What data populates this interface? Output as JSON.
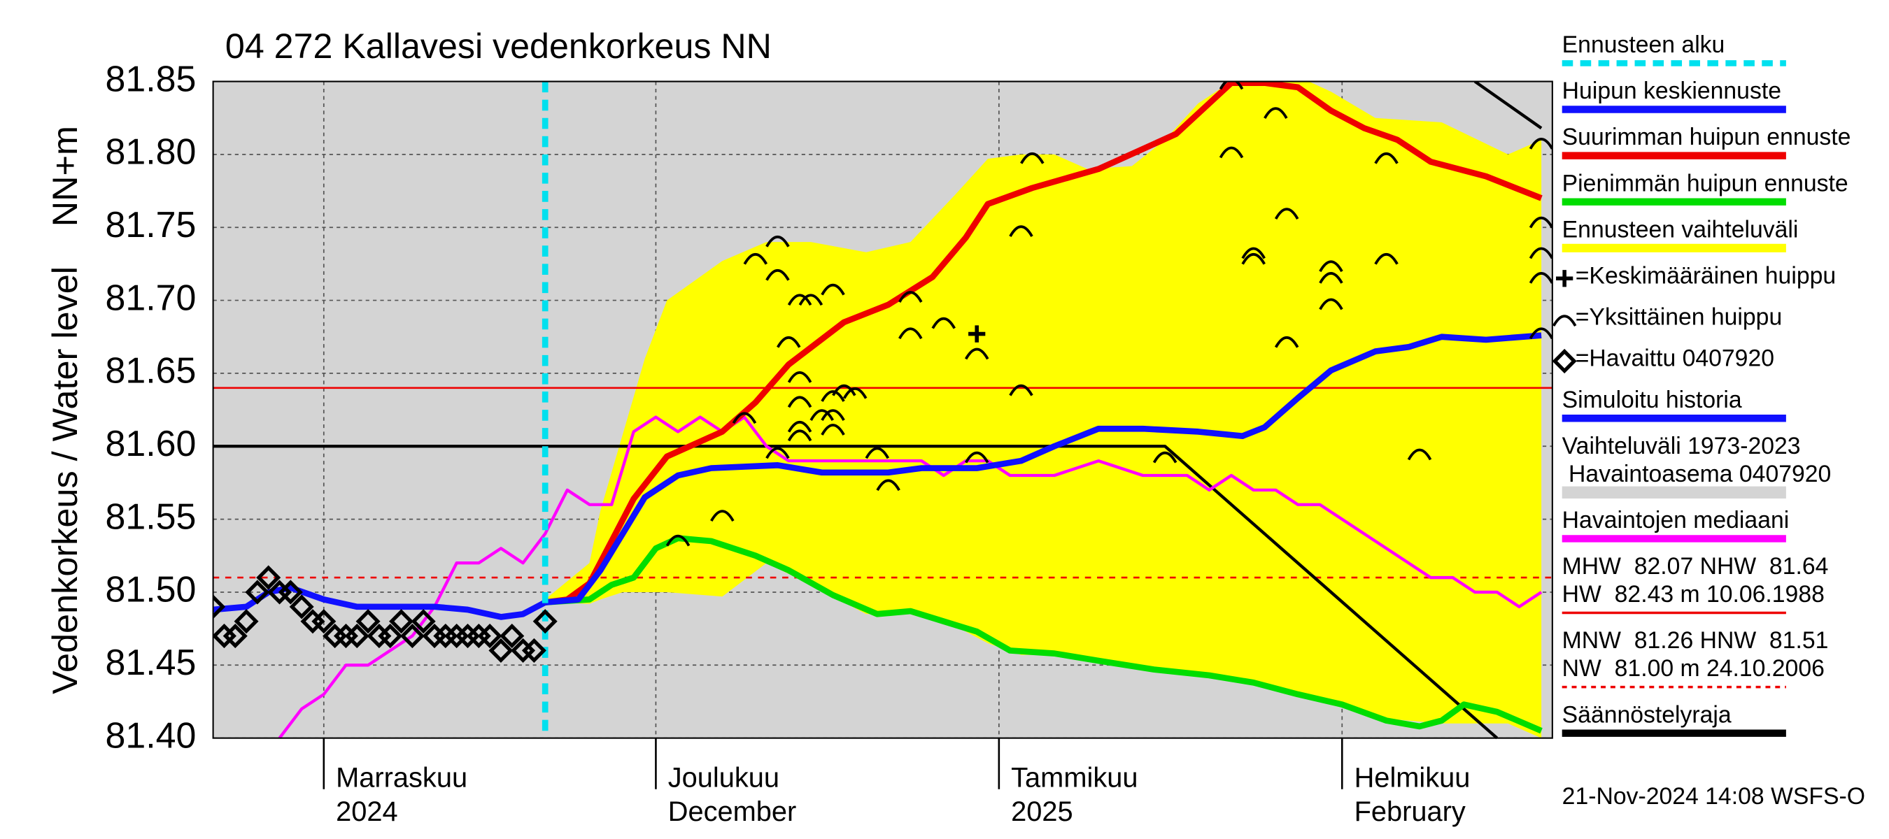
{
  "chart_data": {
    "type": "line",
    "title": "04 272 Kallavesi vedenkorkeus NN",
    "ylabel": "Vedenkorkeus / Water level",
    "yunit": "NN+m",
    "footer": "21-Nov-2024 14:08 WSFS-O",
    "xlim": [
      "2024-10-22",
      "2025-02-20"
    ],
    "xticks": [
      {
        "value": "2024-11-01",
        "label": "Marraskuu",
        "label_2": "2024"
      },
      {
        "value": "2024-12-01",
        "label": "Joulukuu",
        "label_2": "December"
      },
      {
        "value": "2025-01-01",
        "label": "Tammikuu",
        "label_2": "2025"
      },
      {
        "value": "2025-02-01",
        "label": "Helmikuu",
        "label_2": "February"
      }
    ],
    "ylim": [
      81.4,
      81.85
    ],
    "yticks": [
      {
        "value": 81.4,
        "label": "81.40"
      },
      81.45,
      {
        "value": 81.5,
        "label": "81.50"
      },
      81.55,
      {
        "value": 81.6,
        "label": "81.60"
      },
      81.65,
      {
        "value": 81.7,
        "label": "81.70"
      },
      81.75,
      {
        "value": 81.8,
        "label": "81.80"
      },
      81.85
    ],
    "grid": true,
    "series": [
      {
        "kind": "vline",
        "name": "Ennusteen alku",
        "color": "#00e0ee",
        "x": "2024-11-21"
      },
      {
        "kind": "line",
        "name": "Huipun keskiennuste",
        "color": "#1010ff",
        "width": 5,
        "x": [
          "2024-11-21",
          "2024-11-24",
          "2024-11-26",
          "2024-11-28",
          "2024-11-30",
          "2024-12-03",
          "2024-12-06",
          "2024-12-12",
          "2024-12-16",
          "2024-12-22",
          "2024-12-25",
          "2024-12-30",
          "2025-01-03",
          "2025-01-06",
          "2025-01-10",
          "2025-01-14",
          "2025-01-19",
          "2025-01-23",
          "2025-01-25",
          "2025-01-28",
          "2025-01-31",
          "2025-02-04",
          "2025-02-07",
          "2025-02-10",
          "2025-02-14",
          "2025-02-19"
        ],
        "values": [
          81.493,
          81.495,
          81.515,
          81.54,
          81.565,
          81.58,
          81.585,
          81.587,
          81.582,
          81.582,
          81.585,
          81.585,
          81.59,
          81.6,
          81.612,
          81.612,
          81.61,
          81.607,
          81.613,
          81.633,
          81.652,
          81.665,
          81.668,
          81.675,
          81.673,
          81.676
        ]
      },
      {
        "kind": "line",
        "name": "Suurimman huipun ennuste",
        "color": "#ee0000",
        "width": 5,
        "x": [
          "2024-11-21",
          "2024-11-23",
          "2024-11-25",
          "2024-11-27",
          "2024-11-29",
          "2024-12-02",
          "2024-12-07",
          "2024-12-10",
          "2024-12-13",
          "2024-12-18",
          "2024-12-22",
          "2024-12-26",
          "2024-12-29",
          "2024-12-31",
          "2025-01-04",
          "2025-01-10",
          "2025-01-17",
          "2025-01-22",
          "2025-01-25",
          "2025-01-28",
          "2025-01-31",
          "2025-02-03",
          "2025-02-06",
          "2025-02-09",
          "2025-02-14",
          "2025-02-19"
        ],
        "values": [
          81.493,
          81.495,
          81.506,
          81.535,
          81.564,
          81.593,
          81.61,
          81.63,
          81.656,
          81.685,
          81.697,
          81.716,
          81.743,
          81.766,
          81.777,
          81.79,
          81.814,
          81.849,
          81.849,
          81.846,
          81.83,
          81.818,
          81.81,
          81.795,
          81.785,
          81.77
        ]
      },
      {
        "kind": "line",
        "name": "Pienimmän huipun ennuste",
        "color": "#00dd00",
        "width": 5,
        "x": [
          "2024-11-21",
          "2024-11-25",
          "2024-11-27",
          "2024-11-29",
          "2024-12-01",
          "2024-12-03",
          "2024-12-06",
          "2024-12-10",
          "2024-12-13",
          "2024-12-17",
          "2024-12-21",
          "2024-12-24",
          "2024-12-27",
          "2024-12-30",
          "2025-01-02",
          "2025-01-06",
          "2025-01-10",
          "2025-01-15",
          "2025-01-20",
          "2025-01-24",
          "2025-01-28",
          "2025-02-01",
          "2025-02-05",
          "2025-02-08",
          "2025-02-10",
          "2025-02-12",
          "2025-02-15",
          "2025-02-19"
        ],
        "values": [
          81.493,
          81.495,
          81.505,
          81.51,
          81.53,
          81.537,
          81.535,
          81.525,
          81.515,
          81.498,
          81.485,
          81.487,
          81.48,
          81.473,
          81.46,
          81.458,
          81.453,
          81.447,
          81.443,
          81.438,
          81.43,
          81.423,
          81.412,
          81.408,
          81.412,
          81.423,
          81.418,
          81.405
        ]
      },
      {
        "kind": "band",
        "name": "Ennusteen vaihteluväli",
        "color": "#ffff00",
        "x": [
          "2024-11-21",
          "2024-11-25",
          "2024-11-26",
          "2024-11-28",
          "2024-11-30",
          "2024-12-02",
          "2024-12-07",
          "2024-12-11",
          "2024-12-15",
          "2024-12-20",
          "2024-12-24",
          "2024-12-28",
          "2024-12-31",
          "2025-01-03",
          "2025-01-06",
          "2025-01-09",
          "2025-01-13",
          "2025-01-16",
          "2025-01-19",
          "2025-01-22",
          "2025-01-29",
          "2025-01-31",
          "2025-02-04",
          "2025-02-10",
          "2025-02-16",
          "2025-02-19"
        ],
        "values": [
          81.495,
          81.52,
          81.556,
          81.608,
          81.66,
          81.7,
          81.727,
          81.74,
          81.74,
          81.733,
          81.74,
          81.772,
          81.797,
          81.8,
          81.8,
          81.79,
          81.792,
          81.81,
          81.835,
          81.85,
          81.85,
          81.843,
          81.825,
          81.822,
          81.8,
          81.81
        ],
        "low": [
          81.493,
          81.492,
          81.495,
          81.5,
          81.5,
          81.5,
          81.497,
          81.52,
          81.505,
          81.485,
          81.485,
          81.477,
          81.465,
          81.457,
          81.457,
          81.454,
          81.449,
          81.446,
          81.443,
          81.44,
          81.428,
          81.425,
          81.414,
          81.41,
          81.41,
          81.4
        ]
      },
      {
        "kind": "marker",
        "marker": "plus",
        "name": "=Keskimääräinen huippu",
        "color": "#000000",
        "x": [
          "2024-12-30"
        ],
        "values": [
          81.677
        ]
      },
      {
        "kind": "marker",
        "marker": "arc",
        "name": "=Yksittäinen huippu",
        "color": "#000000",
        "x": [
          "2024-12-10",
          "2024-12-12",
          "2024-12-12",
          "2024-12-13",
          "2024-12-14",
          "2024-12-15",
          "2024-12-17",
          "2024-12-14",
          "2024-12-14",
          "2024-12-14",
          "2024-12-14",
          "2024-12-17",
          "2024-12-18",
          "2024-12-19",
          "2024-12-16",
          "2024-12-17",
          "2024-12-17",
          "2024-12-09",
          "2024-12-12",
          "2024-12-07",
          "2024-12-03",
          "2024-12-21",
          "2024-12-22",
          "2024-12-24",
          "2024-12-24",
          "2024-12-27",
          "2024-12-30",
          "2024-12-30",
          "2025-01-03",
          "2025-01-03",
          "2025-01-04",
          "2025-01-16",
          "2025-01-22",
          "2025-01-22",
          "2025-01-24",
          "2025-01-24",
          "2025-01-26",
          "2025-01-27",
          "2025-01-27",
          "2025-01-31",
          "2025-01-31",
          "2025-01-31",
          "2025-02-05",
          "2025-02-05",
          "2025-02-08",
          "2025-02-19",
          "2025-02-19",
          "2025-02-19",
          "2025-02-19",
          "2025-02-19"
        ],
        "values": [
          81.729,
          81.741,
          81.718,
          81.672,
          81.701,
          81.701,
          81.708,
          81.648,
          81.631,
          81.614,
          81.608,
          81.635,
          81.639,
          81.637,
          81.622,
          81.622,
          81.612,
          81.62,
          81.596,
          81.553,
          81.536,
          81.596,
          81.574,
          81.703,
          81.678,
          81.685,
          81.664,
          81.593,
          81.639,
          81.748,
          81.798,
          81.593,
          81.802,
          81.849,
          81.733,
          81.729,
          81.829,
          81.76,
          81.672,
          81.724,
          81.716,
          81.698,
          81.729,
          81.798,
          81.595,
          81.808,
          81.754,
          81.733,
          81.716,
          81.678
        ]
      },
      {
        "kind": "marker",
        "marker": "diamond",
        "name": "=Havaittu 0407920",
        "color": "#000000",
        "x": [
          "2024-10-22",
          "2024-10-23",
          "2024-10-24",
          "2024-10-25",
          "2024-10-26",
          "2024-10-27",
          "2024-10-28",
          "2024-10-29",
          "2024-10-30",
          "2024-10-31",
          "2024-11-01",
          "2024-11-02",
          "2024-11-03",
          "2024-11-04",
          "2024-11-05",
          "2024-11-06",
          "2024-11-07",
          "2024-11-08",
          "2024-11-09",
          "2024-11-10",
          "2024-11-11",
          "2024-11-12",
          "2024-11-13",
          "2024-11-14",
          "2024-11-15",
          "2024-11-16",
          "2024-11-17",
          "2024-11-18",
          "2024-11-19",
          "2024-11-20",
          "2024-11-21"
        ],
        "values": [
          81.49,
          81.47,
          81.47,
          81.48,
          81.5,
          81.51,
          81.5,
          81.5,
          81.49,
          81.48,
          81.48,
          81.47,
          81.47,
          81.47,
          81.48,
          81.47,
          81.47,
          81.48,
          81.47,
          81.48,
          81.47,
          81.47,
          81.47,
          81.47,
          81.47,
          81.47,
          81.46,
          81.47,
          81.46,
          81.46,
          81.48
        ]
      },
      {
        "kind": "line",
        "name": "Simuloitu historia",
        "color": "#1010ff",
        "width": 5,
        "x": [
          "2024-10-22",
          "2024-10-25",
          "2024-10-27",
          "2024-10-29",
          "2024-11-01",
          "2024-11-04",
          "2024-11-08",
          "2024-11-11",
          "2024-11-14",
          "2024-11-17",
          "2024-11-19",
          "2024-11-21"
        ],
        "values": [
          81.488,
          81.49,
          81.5,
          81.503,
          81.495,
          81.49,
          81.49,
          81.49,
          81.488,
          81.483,
          81.485,
          81.493
        ]
      },
      {
        "kind": "background",
        "name": [
          "Vaihteluväli 1973-2023",
          " Havaintoasema 0407920"
        ],
        "color": "#d4d4d4"
      },
      {
        "kind": "line",
        "name": "Havaintojen mediaani",
        "color": "#ff00ff",
        "width": 2.5,
        "x": [
          "2024-10-28",
          "2024-10-30",
          "2024-11-01",
          "2024-11-03",
          "2024-11-05",
          "2024-11-07",
          "2024-11-09",
          "2024-11-11",
          "2024-11-13",
          "2024-11-15",
          "2024-11-17",
          "2024-11-19",
          "2024-11-21",
          "2024-11-23",
          "2024-11-25",
          "2024-11-27",
          "2024-11-29",
          "2024-12-01",
          "2024-12-03",
          "2024-12-05",
          "2024-12-07",
          "2024-12-09",
          "2024-12-11",
          "2024-12-13",
          "2024-12-17",
          "2024-12-21",
          "2024-12-23",
          "2024-12-25",
          "2024-12-27",
          "2024-12-29",
          "2024-12-31",
          "2025-01-02",
          "2025-01-06",
          "2025-01-10",
          "2025-01-14",
          "2025-01-18",
          "2025-01-20",
          "2025-01-22",
          "2025-01-24",
          "2025-01-26",
          "2025-01-28",
          "2025-01-30",
          "2025-02-01",
          "2025-02-03",
          "2025-02-05",
          "2025-02-07",
          "2025-02-09",
          "2025-02-11",
          "2025-02-13",
          "2025-02-15",
          "2025-02-17",
          "2025-02-19"
        ],
        "values": [
          81.4,
          81.42,
          81.43,
          81.45,
          81.45,
          81.46,
          81.47,
          81.49,
          81.52,
          81.52,
          81.53,
          81.52,
          81.54,
          81.57,
          81.56,
          81.56,
          81.61,
          81.62,
          81.61,
          81.62,
          81.61,
          81.62,
          81.6,
          81.59,
          81.59,
          81.59,
          81.59,
          81.59,
          81.58,
          81.59,
          81.59,
          81.58,
          81.58,
          81.59,
          81.58,
          81.58,
          81.57,
          81.58,
          81.57,
          81.57,
          81.56,
          81.56,
          81.55,
          81.54,
          81.53,
          81.52,
          81.51,
          81.51,
          81.5,
          81.5,
          81.49,
          81.5
        ]
      },
      {
        "kind": "hline",
        "name": [
          "MHW  82.07 NHW  81.64",
          "HW  82.43 m 10.06.1988"
        ],
        "color": "#ee0000",
        "dashed": false,
        "value": 81.64
      },
      {
        "kind": "hline",
        "name": [
          "MNW  81.26 HNW  81.51",
          "NW  81.00 m 24.10.2006"
        ],
        "color": "#ee0000",
        "dashed": true,
        "value": 81.51
      },
      {
        "kind": "line",
        "name": "Säännöstelyraja",
        "color": "#000000",
        "width": 2.5,
        "x": [
          "2024-10-22",
          "2025-01-16",
          "2025-02-15",
          "2025-02-15",
          "2025-02-13",
          "2025-02-19"
        ],
        "values": [
          81.6,
          81.6,
          81.4,
          null,
          81.85,
          81.818
        ]
      }
    ]
  }
}
